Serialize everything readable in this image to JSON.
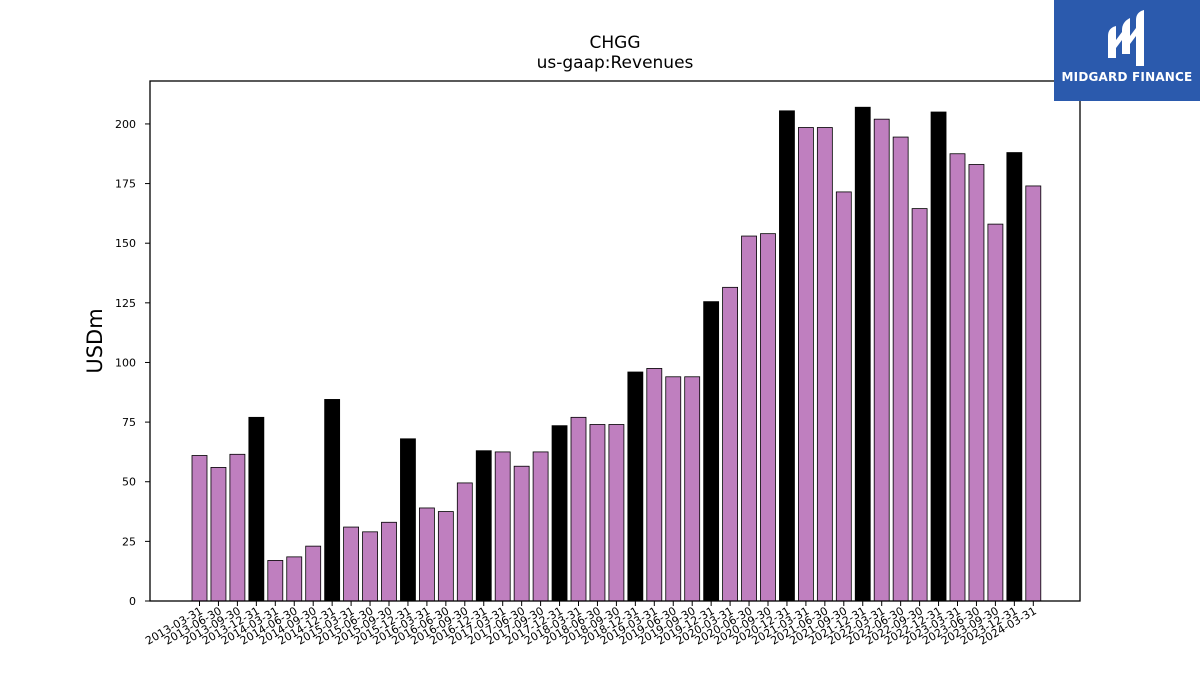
{
  "colors": {
    "bar_default": "#bf7fbf",
    "bar_q4": "#000000",
    "logo_bg": "#2b5aad"
  },
  "logo": {
    "text": "MIDGARD FINANCE",
    "icon": "midgard-m-logo-icon"
  },
  "chart_data": {
    "type": "bar",
    "title": "CHGG",
    "subtitle": "us-gaap:Revenues",
    "xlabel": "",
    "ylabel": "USDm",
    "ylim": [
      0,
      218
    ],
    "yticks": [
      0,
      25,
      50,
      75,
      100,
      125,
      150,
      175,
      200
    ],
    "grid": false,
    "legend": "none",
    "highlight_rule": "quarters ending 12-31 drawn in black",
    "categories": [
      "2013-03-31",
      "2013-06-30",
      "2013-09-30",
      "2013-12-31",
      "2014-03-31",
      "2014-06-30",
      "2014-09-30",
      "2014-12-31",
      "2015-03-31",
      "2015-06-30",
      "2015-09-30",
      "2015-12-31",
      "2016-03-31",
      "2016-06-30",
      "2016-09-30",
      "2016-12-31",
      "2017-03-31",
      "2017-06-30",
      "2017-09-30",
      "2017-12-31",
      "2018-03-31",
      "2018-06-30",
      "2018-09-30",
      "2018-12-31",
      "2019-03-31",
      "2019-06-30",
      "2019-09-30",
      "2019-12-31",
      "2020-03-31",
      "2020-06-30",
      "2020-09-30",
      "2020-12-31",
      "2021-03-31",
      "2021-06-30",
      "2021-09-30",
      "2021-12-31",
      "2022-03-31",
      "2022-06-30",
      "2022-09-30",
      "2022-12-31",
      "2023-03-31",
      "2023-06-30",
      "2023-09-30",
      "2023-12-31",
      "2024-03-31"
    ],
    "values": [
      61,
      56,
      61.5,
      77,
      17,
      18.5,
      23,
      84.5,
      31,
      29,
      33,
      68,
      39,
      37.5,
      49.5,
      63,
      62.5,
      56.5,
      62.5,
      73.5,
      77,
      74,
      74,
      96,
      97.5,
      94,
      94,
      125.5,
      131.5,
      153,
      154,
      205.5,
      198.5,
      198.5,
      171.5,
      207,
      202,
      194.5,
      164.5,
      205,
      187.5,
      183,
      158,
      188,
      174
    ]
  }
}
